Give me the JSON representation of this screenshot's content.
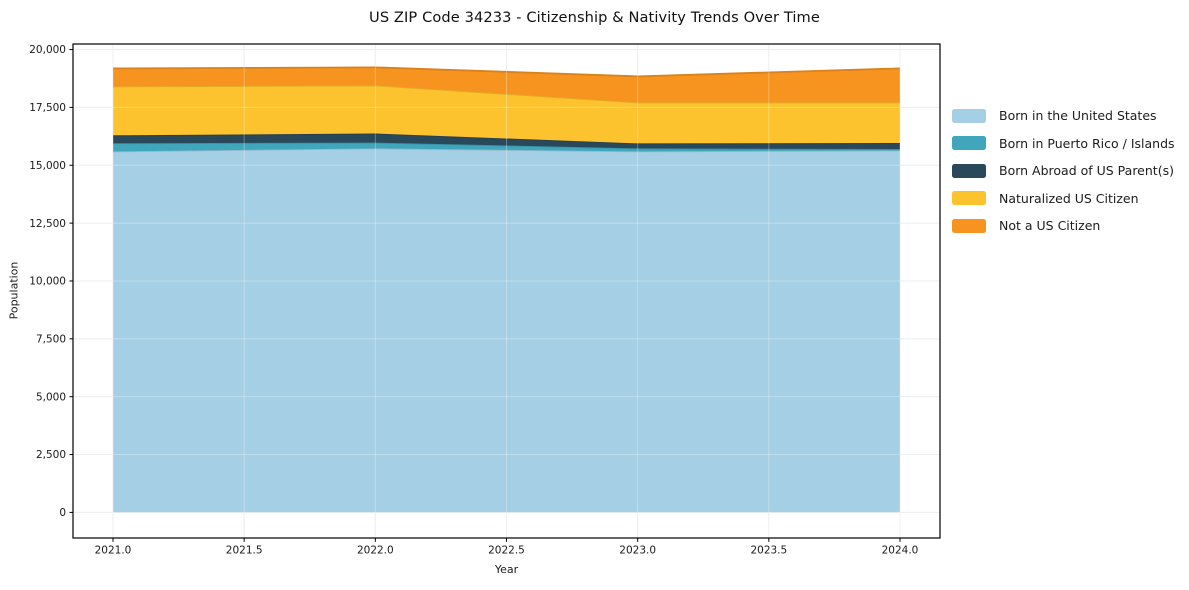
{
  "chart_data": {
    "type": "area",
    "stacked": true,
    "title": "US ZIP Code 34233 - Citizenship & Nativity Trends Over Time",
    "xlabel": "Year",
    "ylabel": "Population",
    "x": [
      2021,
      2022,
      2023,
      2024
    ],
    "series": [
      {
        "name": "Born in the United States",
        "color": "#a5cfe4",
        "values": [
          15600,
          15730,
          15600,
          15640
        ]
      },
      {
        "name": "Born in Puerto Rico / Islands",
        "color": "#3fa6bc",
        "values": [
          350,
          250,
          130,
          60
        ]
      },
      {
        "name": "Born Abroad of US Parent(s)",
        "color": "#29485a",
        "values": [
          345,
          390,
          215,
          260
        ]
      },
      {
        "name": "Naturalized US Citizen",
        "color": "#fdc32e",
        "values": [
          2110,
          2080,
          1770,
          1755
        ]
      },
      {
        "name": "Not a US Citizen",
        "color": "#f7941f",
        "values": [
          780,
          780,
          1125,
          1470
        ]
      }
    ],
    "stack_totals": [
      19185,
      19230,
      18840,
      19185
    ],
    "xlim": [
      2020.85,
      2024.15
    ],
    "ylim": [
      -1080,
      20222
    ],
    "grid": true,
    "legend_position": "right-of-plot",
    "xtick_values": [
      2021,
      2021.5,
      2022,
      2022.5,
      2023,
      2023.5,
      2024
    ],
    "xtick_labels": [
      "2021.0",
      "2021.5",
      "2022.0",
      "2022.5",
      "2023.0",
      "2023.5",
      "2024.0"
    ],
    "ytick_values": [
      0,
      2500,
      5000,
      7500,
      10000,
      12500,
      15000,
      17500,
      20000
    ],
    "ytick_labels": [
      "0",
      "2,500",
      "5,000",
      "7,500",
      "10,000",
      "12,500",
      "15,000",
      "17,500",
      "20,000"
    ]
  }
}
